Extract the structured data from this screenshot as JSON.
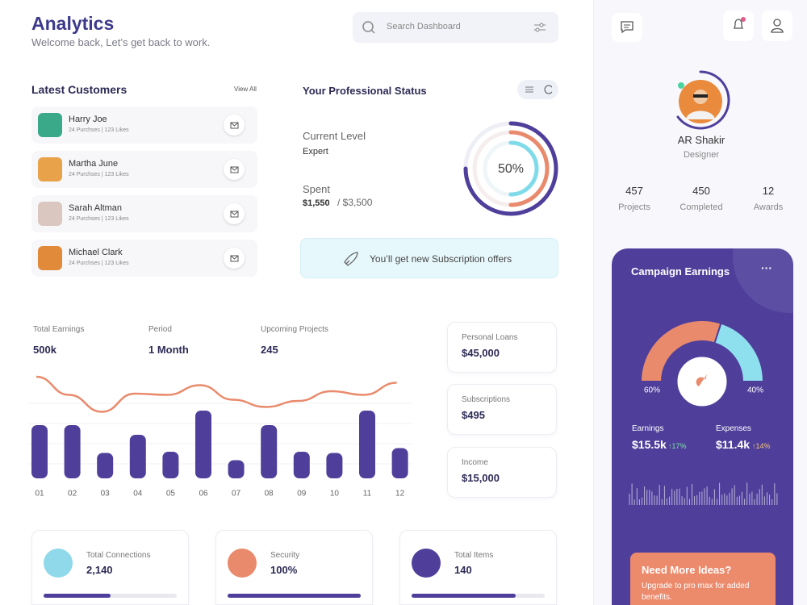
{
  "header": {
    "title": "Analytics",
    "subtitle": "Welcome back, Let’s get back to work.",
    "search_placeholder": "Search Dashboard"
  },
  "customers": {
    "title": "Latest Customers",
    "view_all": "View All",
    "items": [
      {
        "name": "Harry Joe",
        "meta": "24 Purchses | 123 Likes"
      },
      {
        "name": "Martha June",
        "meta": "24 Purchses | 123 Likes"
      },
      {
        "name": "Sarah Altman",
        "meta": "24 Purchses | 123 Likes"
      },
      {
        "name": "Michael Clark",
        "meta": "24 Purchses | 123 Likes"
      }
    ]
  },
  "status": {
    "title": "Your Professional Status",
    "level_label": "Current Level",
    "level": "Expert",
    "spent_label": "Spent",
    "spent": "$1,550",
    "spent_total": "/ $3,500",
    "progress": 50,
    "progress_label": "50%",
    "offer": "You’ll get new Subscription offers"
  },
  "earnings": {
    "stats": [
      {
        "label": "Total Earnings",
        "value": "500k"
      },
      {
        "label": "Period",
        "value": "1 Month"
      },
      {
        "label": "Upcoming Projects",
        "value": "245"
      }
    ],
    "chart_data": {
      "type": "bar",
      "categories": [
        "01",
        "02",
        "03",
        "04",
        "05",
        "06",
        "07",
        "08",
        "09",
        "10",
        "11",
        "12"
      ],
      "values": [
        44,
        44,
        21,
        36,
        22,
        56,
        15,
        44,
        22,
        21,
        56,
        25
      ],
      "color": "#4f3f9b",
      "line": [
        84,
        69,
        55,
        70,
        69,
        77,
        65,
        59,
        64,
        72,
        69,
        79
      ],
      "line_color": "#e98a6c",
      "ylim": [
        0,
        100
      ]
    }
  },
  "cards": [
    {
      "label": "Personal Loans",
      "value": "$45,000"
    },
    {
      "label": "Subscriptions",
      "value": "$495"
    },
    {
      "label": "Income",
      "value": "$15,000"
    }
  ],
  "bottom": [
    {
      "label": "Total Connections",
      "value": "2,140",
      "progress": 50,
      "color": "#8fd9ea"
    },
    {
      "label": "Security",
      "value": "100%",
      "progress": 100,
      "color": "#e98a6c"
    },
    {
      "label": "Total Items",
      "value": "140",
      "progress": 78,
      "color": "#4f3f9b"
    }
  ],
  "profile": {
    "name": "AR Shakir",
    "role": "Designer",
    "stats": [
      {
        "value": 457,
        "label": "Projects"
      },
      {
        "value": 450,
        "label": "Completed"
      },
      {
        "value": 12,
        "label": "Awards"
      }
    ]
  },
  "campaign": {
    "title": "Campaign Earnings",
    "gauge": [
      {
        "value": 60,
        "label": "60%",
        "color": "#e98a6c"
      },
      {
        "value": 40,
        "label": "40%",
        "color": "#8fe0ee"
      }
    ],
    "earnings_label": "Earnings",
    "earnings": "$15.5k",
    "earnings_change": "17%",
    "expenses_label": "Expenses",
    "expenses": "$11.4k",
    "expenses_change": "14%",
    "promo_title": "Need More Ideas?",
    "promo_text": "Upgrade to pro max for added benefits."
  }
}
